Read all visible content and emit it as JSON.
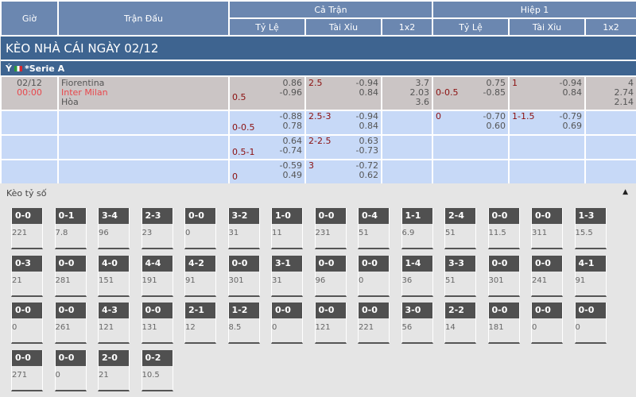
{
  "header": {
    "gio": "Giờ",
    "tran_dau": "Trận Đấu",
    "ca_tran": "Cả Trận",
    "hiep1": "Hiệp 1",
    "ty_le": "Tỷ Lệ",
    "tai_xiu": "Tài Xỉu",
    "x12": "1x2"
  },
  "title": "KÈO NHÀ CÁI NGÀY 02/12",
  "league": {
    "country": "Ý",
    "name": "*Serie A"
  },
  "match": {
    "date": "02/12",
    "time": "00:00",
    "home": "Fiorentina",
    "away": "Inter Milan",
    "draw": "Hòa",
    "ft_hdp": {
      "line": "0.5",
      "home": "0.86",
      "away": "-0.96"
    },
    "ft_ou": {
      "line": "2.5",
      "over": "-0.94",
      "under": "0.84"
    },
    "ft_1x2": [
      "3.7",
      "2.03",
      "3.6"
    ],
    "h1_hdp": {
      "line": "0-0.5",
      "home": "0.75",
      "away": "-0.85"
    },
    "h1_ou": {
      "line": "1",
      "over": "-0.94",
      "under": "0.84"
    },
    "h1_1x2": [
      "4",
      "2.74",
      "2.14"
    ]
  },
  "extra_rows": [
    {
      "ft_hdp": {
        "line": "0-0.5",
        "home": "-0.88",
        "away": "0.78"
      },
      "ft_ou": {
        "line": "2.5-3",
        "over": "-0.94",
        "under": "0.84"
      },
      "h1_hdp": {
        "line": "0",
        "home": "-0.70",
        "away": "0.60"
      },
      "h1_ou": {
        "line": "1-1.5",
        "over": "-0.79",
        "under": "0.69"
      }
    },
    {
      "ft_hdp": {
        "line": "0.5-1",
        "home": "0.64",
        "away": "-0.74"
      },
      "ft_ou": {
        "line": "2-2.5",
        "over": "0.63",
        "under": "-0.73"
      }
    },
    {
      "ft_hdp": {
        "line": "0",
        "home": "-0.59",
        "away": "0.49"
      },
      "ft_ou": {
        "line": "3",
        "over": "-0.72",
        "under": "0.62"
      }
    }
  ],
  "keo_ty_so": {
    "title": "Kèo tỷ số",
    "collapse_icon": "caret-up-icon",
    "cells": [
      [
        "0-0",
        "221"
      ],
      [
        "0-1",
        "7.8"
      ],
      [
        "3-4",
        "96"
      ],
      [
        "2-3",
        "23"
      ],
      [
        "0-0",
        "0"
      ],
      [
        "3-2",
        "31"
      ],
      [
        "1-0",
        "11"
      ],
      [
        "0-0",
        "231"
      ],
      [
        "0-4",
        "51"
      ],
      [
        "1-1",
        "6.9"
      ],
      [
        "2-4",
        "51"
      ],
      [
        "0-0",
        "11.5"
      ],
      [
        "0-0",
        "311"
      ],
      [
        "1-3",
        "15.5"
      ],
      [
        "0-3",
        "21"
      ],
      [
        "0-0",
        "281"
      ],
      [
        "4-0",
        "151"
      ],
      [
        "4-4",
        "191"
      ],
      [
        "4-2",
        "91"
      ],
      [
        "0-0",
        "301"
      ],
      [
        "3-1",
        "31"
      ],
      [
        "0-0",
        "96"
      ],
      [
        "0-0",
        "0"
      ],
      [
        "1-4",
        "36"
      ],
      [
        "3-3",
        "51"
      ],
      [
        "0-0",
        "301"
      ],
      [
        "0-0",
        "241"
      ],
      [
        "4-1",
        "91"
      ],
      [
        "0-0",
        "0"
      ],
      [
        "0-0",
        "261"
      ],
      [
        "4-3",
        "121"
      ],
      [
        "0-0",
        "131"
      ],
      [
        "2-1",
        "12"
      ],
      [
        "1-2",
        "8.5"
      ],
      [
        "0-0",
        "0"
      ],
      [
        "0-0",
        "121"
      ],
      [
        "0-0",
        "221"
      ],
      [
        "3-0",
        "56"
      ],
      [
        "2-2",
        "14"
      ],
      [
        "0-0",
        "181"
      ],
      [
        "0-0",
        "0"
      ],
      [
        "0-0",
        "0"
      ],
      [
        "0-0",
        "271"
      ],
      [
        "0-0",
        "0"
      ],
      [
        "2-0",
        "21"
      ],
      [
        "0-2",
        "10.5"
      ]
    ]
  }
}
